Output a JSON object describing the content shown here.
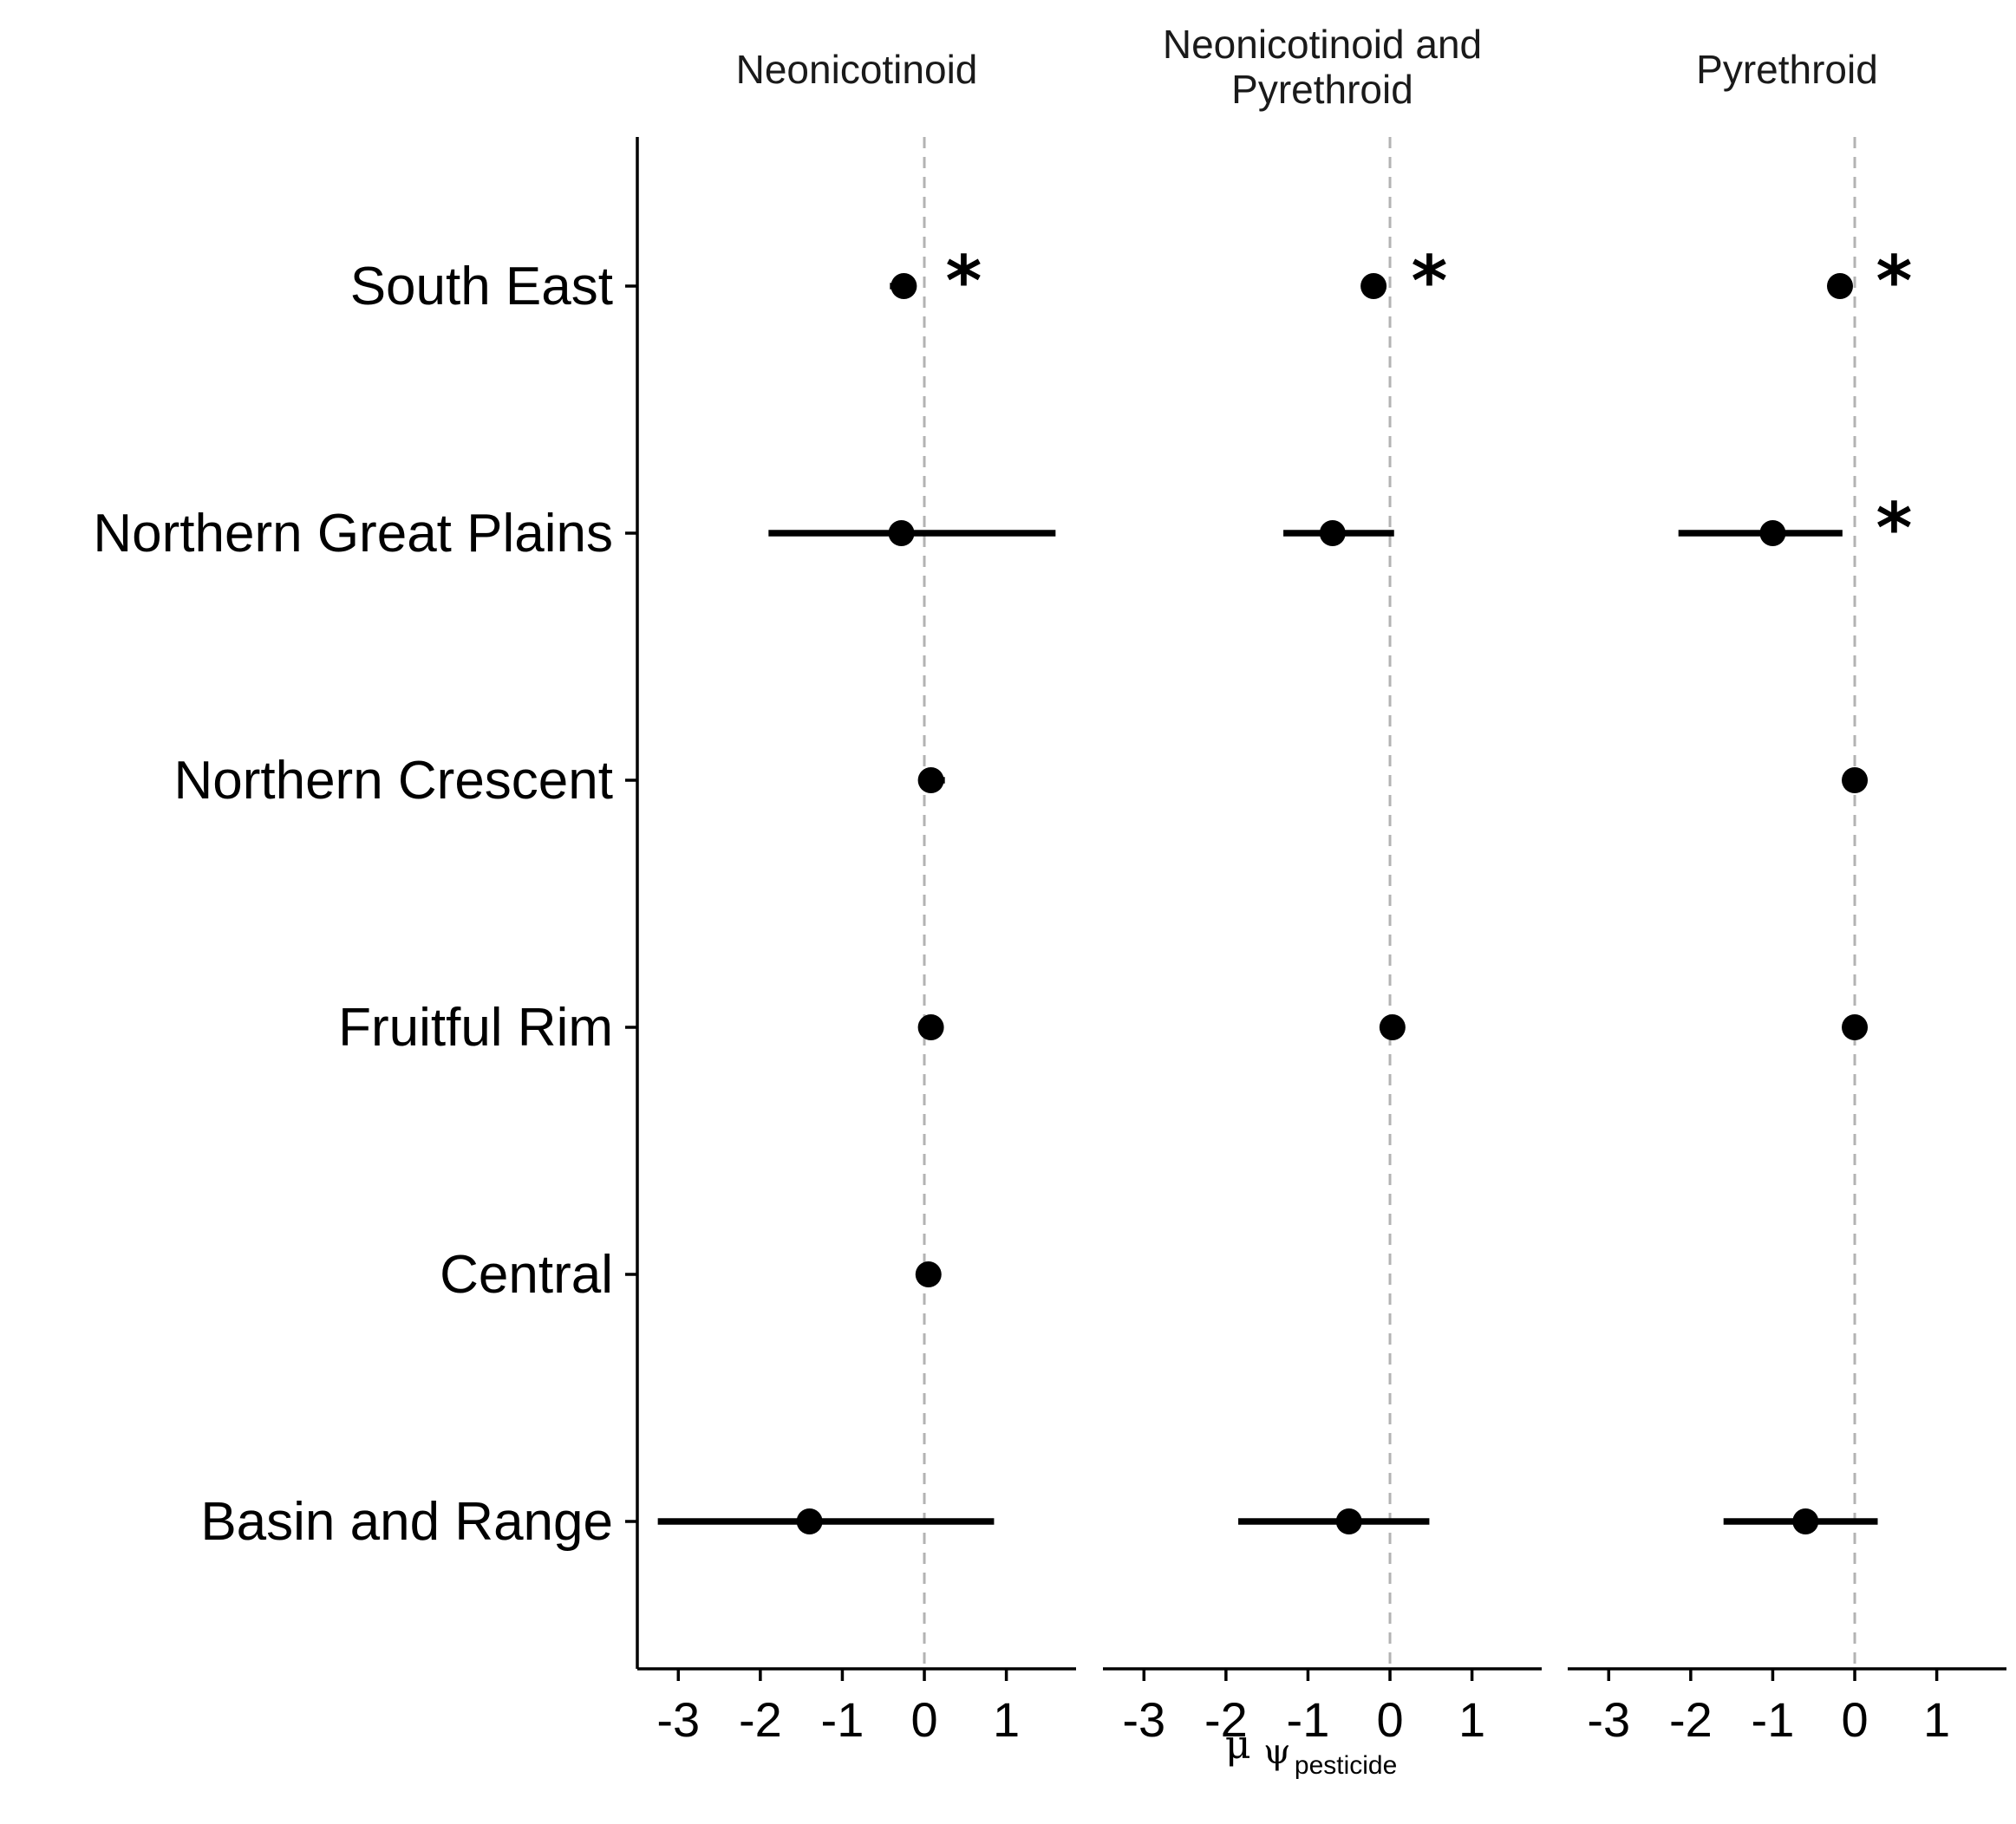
{
  "chart_data": {
    "type": "scatter",
    "subtype": "point-range forest plot, faceted",
    "facets": [
      "Neonicotinoid",
      "Neonicotinoid and Pyrethroid",
      "Pyrethroid"
    ],
    "regions": [
      "South East",
      "Northern Great Plains",
      "Northern Crescent",
      "Fruitful Rim",
      "Central",
      "Basin and Range"
    ],
    "x_ticks": [
      "-3",
      "-2",
      "-1",
      "0",
      "1"
    ],
    "xlim": [
      -3.5,
      1.85
    ],
    "reference_line_x": 0,
    "grid": false,
    "xlabel": {
      "symbol": "μ",
      "var": "ψ",
      "sub": "pesticide"
    },
    "significance_marker": "*",
    "series": [
      {
        "facet": "Neonicotinoid",
        "points": [
          {
            "region": "South East",
            "x": -0.25,
            "lo": -0.42,
            "hi": -0.1,
            "sig": true
          },
          {
            "region": "Northern Great Plains",
            "x": -0.28,
            "lo": -1.9,
            "hi": 1.6,
            "sig": false
          },
          {
            "region": "Northern Crescent",
            "x": 0.08,
            "lo": -0.03,
            "hi": 0.25,
            "sig": false
          },
          {
            "region": "Fruitful Rim",
            "x": 0.08,
            "lo": 0.02,
            "hi": 0.14,
            "sig": false
          },
          {
            "region": "Central",
            "x": 0.05,
            "lo": -0.02,
            "hi": 0.13,
            "sig": false
          },
          {
            "region": "Basin and Range",
            "x": -1.4,
            "lo": -3.25,
            "hi": 0.85,
            "sig": false
          }
        ]
      },
      {
        "facet": "Neonicotinoid and Pyrethroid",
        "points": [
          {
            "region": "South East",
            "x": -0.2,
            "lo": -0.3,
            "hi": -0.1,
            "sig": true
          },
          {
            "region": "Northern Great Plains",
            "x": -0.7,
            "lo": -1.3,
            "hi": 0.05,
            "sig": false
          },
          {
            "region": "Fruitful Rim",
            "x": 0.03,
            "lo": -0.03,
            "hi": 0.08,
            "sig": false
          },
          {
            "region": "Basin and Range",
            "x": -0.5,
            "lo": -1.85,
            "hi": 0.48,
            "sig": false
          }
        ]
      },
      {
        "facet": "Pyrethroid",
        "points": [
          {
            "region": "South East",
            "x": -0.18,
            "lo": -0.28,
            "hi": -0.08,
            "sig": true
          },
          {
            "region": "Northern Great Plains",
            "x": -1.0,
            "lo": -2.15,
            "hi": -0.15,
            "sig": true
          },
          {
            "region": "Northern Crescent",
            "x": 0.0,
            "lo": -0.06,
            "hi": 0.06,
            "sig": false
          },
          {
            "region": "Fruitful Rim",
            "x": 0.0,
            "lo": -0.06,
            "hi": 0.06,
            "sig": false
          },
          {
            "region": "Basin and Range",
            "x": -0.6,
            "lo": -1.6,
            "hi": 0.28,
            "sig": false
          }
        ]
      }
    ]
  }
}
